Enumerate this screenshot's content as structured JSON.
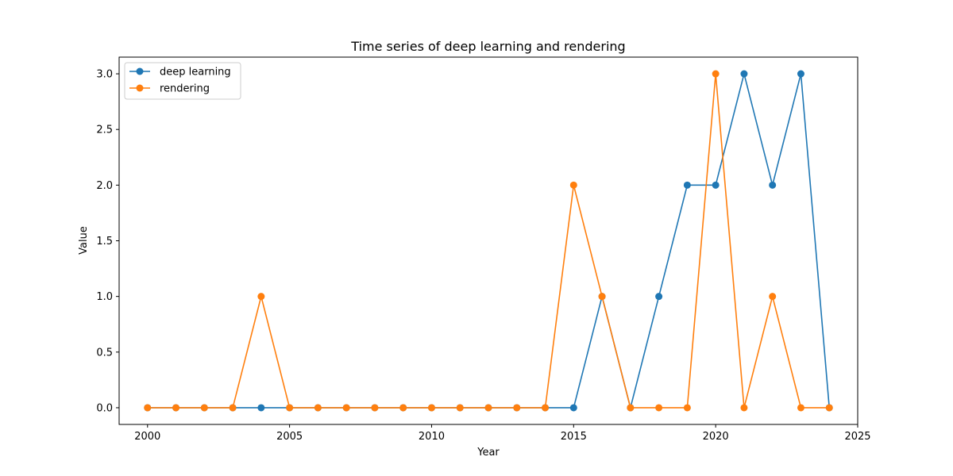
{
  "chart_data": {
    "type": "line",
    "title": "Time series of deep learning and rendering",
    "xlabel": "Year",
    "ylabel": "Value",
    "xlim": [
      1999,
      2025
    ],
    "ylim": [
      -0.15,
      3.15
    ],
    "xticks": [
      2000,
      2005,
      2010,
      2015,
      2020,
      2025
    ],
    "xtick_labels": [
      "2000",
      "2005",
      "2010",
      "2015",
      "2020",
      "2025"
    ],
    "yticks": [
      0,
      0.5,
      1,
      1.5,
      2,
      2.5,
      3
    ],
    "ytick_labels": [
      "0.0",
      "0.5",
      "1.0",
      "1.5",
      "2.0",
      "2.5",
      "3.0"
    ],
    "grid": false,
    "legend_position": "top-left",
    "x": [
      2000,
      2001,
      2002,
      2003,
      2004,
      2005,
      2006,
      2007,
      2008,
      2009,
      2010,
      2011,
      2012,
      2013,
      2014,
      2015,
      2016,
      2017,
      2018,
      2019,
      2020,
      2021,
      2022,
      2023,
      2024
    ],
    "series": [
      {
        "name": "deep learning",
        "color": "#1f77b4",
        "values": [
          0,
          0,
          0,
          0,
          0,
          0,
          0,
          0,
          0,
          0,
          0,
          0,
          0,
          0,
          0,
          0,
          1,
          0,
          1,
          2,
          2,
          3,
          2,
          3,
          0
        ]
      },
      {
        "name": "rendering",
        "color": "#ff7f0e",
        "values": [
          0,
          0,
          0,
          0,
          1,
          0,
          0,
          0,
          0,
          0,
          0,
          0,
          0,
          0,
          0,
          2,
          1,
          0,
          0,
          0,
          3,
          0,
          1,
          0,
          0
        ]
      }
    ]
  }
}
